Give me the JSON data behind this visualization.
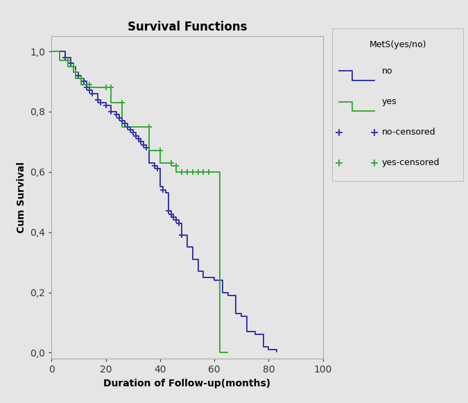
{
  "title": "Survival Functions",
  "xlabel": "Duration of Follow-up(months)",
  "ylabel": "Cum Survival",
  "legend_title": "MetS(yes/no)",
  "xlim": [
    0,
    100
  ],
  "ylim": [
    -0.02,
    1.05
  ],
  "xticks": [
    0,
    20,
    40,
    60,
    80,
    100
  ],
  "yticks": [
    0.0,
    0.2,
    0.4,
    0.6,
    0.8,
    1.0
  ],
  "yticklabels": [
    "0,0",
    "0,2",
    "0,4",
    "0,6",
    "0,8",
    "1,0"
  ],
  "plot_bg": "#e5e5e5",
  "fig_bg": "#e5e5e5",
  "legend_bg": "#e5e5e5",
  "no_color": "#3333aa",
  "yes_color": "#33aa33",
  "no_steps_x": [
    0,
    5,
    5,
    7,
    7,
    8,
    8,
    9,
    9,
    10,
    10,
    11,
    11,
    12,
    12,
    13,
    13,
    14,
    14,
    15,
    15,
    17,
    17,
    18,
    18,
    20,
    20,
    22,
    22,
    24,
    24,
    25,
    25,
    26,
    26,
    27,
    27,
    28,
    28,
    29,
    29,
    30,
    30,
    31,
    31,
    32,
    32,
    33,
    33,
    34,
    34,
    35,
    35,
    36,
    36,
    38,
    38,
    39,
    39,
    40,
    40,
    41,
    41,
    42,
    42,
    43,
    43,
    44,
    44,
    45,
    45,
    46,
    46,
    47,
    47,
    48,
    48,
    50,
    50,
    52,
    52,
    54,
    54,
    56,
    56,
    60,
    60,
    63,
    63,
    65,
    65,
    68,
    68,
    70,
    70,
    72,
    72,
    75,
    75,
    78,
    78,
    80,
    80,
    83,
    83
  ],
  "no_steps_y": [
    1.0,
    1.0,
    0.98,
    0.98,
    0.96,
    0.96,
    0.95,
    0.95,
    0.93,
    0.93,
    0.92,
    0.92,
    0.91,
    0.91,
    0.9,
    0.9,
    0.88,
    0.88,
    0.87,
    0.87,
    0.86,
    0.86,
    0.84,
    0.84,
    0.83,
    0.83,
    0.82,
    0.82,
    0.8,
    0.8,
    0.79,
    0.79,
    0.78,
    0.78,
    0.77,
    0.77,
    0.76,
    0.76,
    0.75,
    0.75,
    0.74,
    0.74,
    0.73,
    0.73,
    0.72,
    0.72,
    0.71,
    0.71,
    0.7,
    0.7,
    0.69,
    0.69,
    0.68,
    0.68,
    0.63,
    0.63,
    0.62,
    0.62,
    0.61,
    0.61,
    0.55,
    0.55,
    0.54,
    0.54,
    0.53,
    0.53,
    0.47,
    0.47,
    0.46,
    0.46,
    0.45,
    0.45,
    0.44,
    0.44,
    0.43,
    0.43,
    0.39,
    0.39,
    0.35,
    0.35,
    0.31,
    0.31,
    0.27,
    0.27,
    0.25,
    0.25,
    0.24,
    0.24,
    0.2,
    0.2,
    0.19,
    0.19,
    0.13,
    0.13,
    0.12,
    0.12,
    0.07,
    0.07,
    0.06,
    0.06,
    0.02,
    0.02,
    0.01,
    0.01,
    0.0
  ],
  "yes_steps_x": [
    0,
    3,
    3,
    6,
    6,
    8,
    8,
    9,
    9,
    11,
    11,
    14,
    14,
    20,
    20,
    22,
    22,
    26,
    26,
    36,
    36,
    40,
    40,
    44,
    44,
    46,
    46,
    62,
    62,
    65
  ],
  "yes_steps_y": [
    1.0,
    1.0,
    0.97,
    0.97,
    0.95,
    0.95,
    0.93,
    0.93,
    0.91,
    0.91,
    0.89,
    0.89,
    0.88,
    0.88,
    0.88,
    0.88,
    0.83,
    0.83,
    0.75,
    0.75,
    0.67,
    0.67,
    0.63,
    0.63,
    0.62,
    0.62,
    0.6,
    0.6,
    0.0,
    0.0
  ],
  "no_censored_x": [
    5,
    7,
    9,
    10,
    11,
    12,
    13,
    14,
    15,
    17,
    18,
    20,
    22,
    24,
    25,
    26,
    27,
    28,
    29,
    30,
    31,
    32,
    33,
    34,
    35,
    38,
    39,
    41,
    43,
    44,
    45,
    46,
    47,
    48
  ],
  "no_censored_y": [
    0.98,
    0.96,
    0.93,
    0.92,
    0.91,
    0.9,
    0.88,
    0.87,
    0.86,
    0.84,
    0.83,
    0.82,
    0.8,
    0.79,
    0.78,
    0.77,
    0.76,
    0.75,
    0.74,
    0.73,
    0.72,
    0.71,
    0.7,
    0.69,
    0.68,
    0.62,
    0.61,
    0.54,
    0.47,
    0.46,
    0.45,
    0.44,
    0.43,
    0.39
  ],
  "yes_censored_x": [
    6,
    8,
    9,
    11,
    14,
    20,
    22,
    26,
    36,
    40,
    44,
    46,
    48,
    50,
    52,
    54,
    56,
    58
  ],
  "yes_censored_y": [
    0.97,
    0.95,
    0.93,
    0.91,
    0.89,
    0.88,
    0.88,
    0.83,
    0.75,
    0.67,
    0.63,
    0.62,
    0.6,
    0.6,
    0.6,
    0.6,
    0.6,
    0.6
  ]
}
